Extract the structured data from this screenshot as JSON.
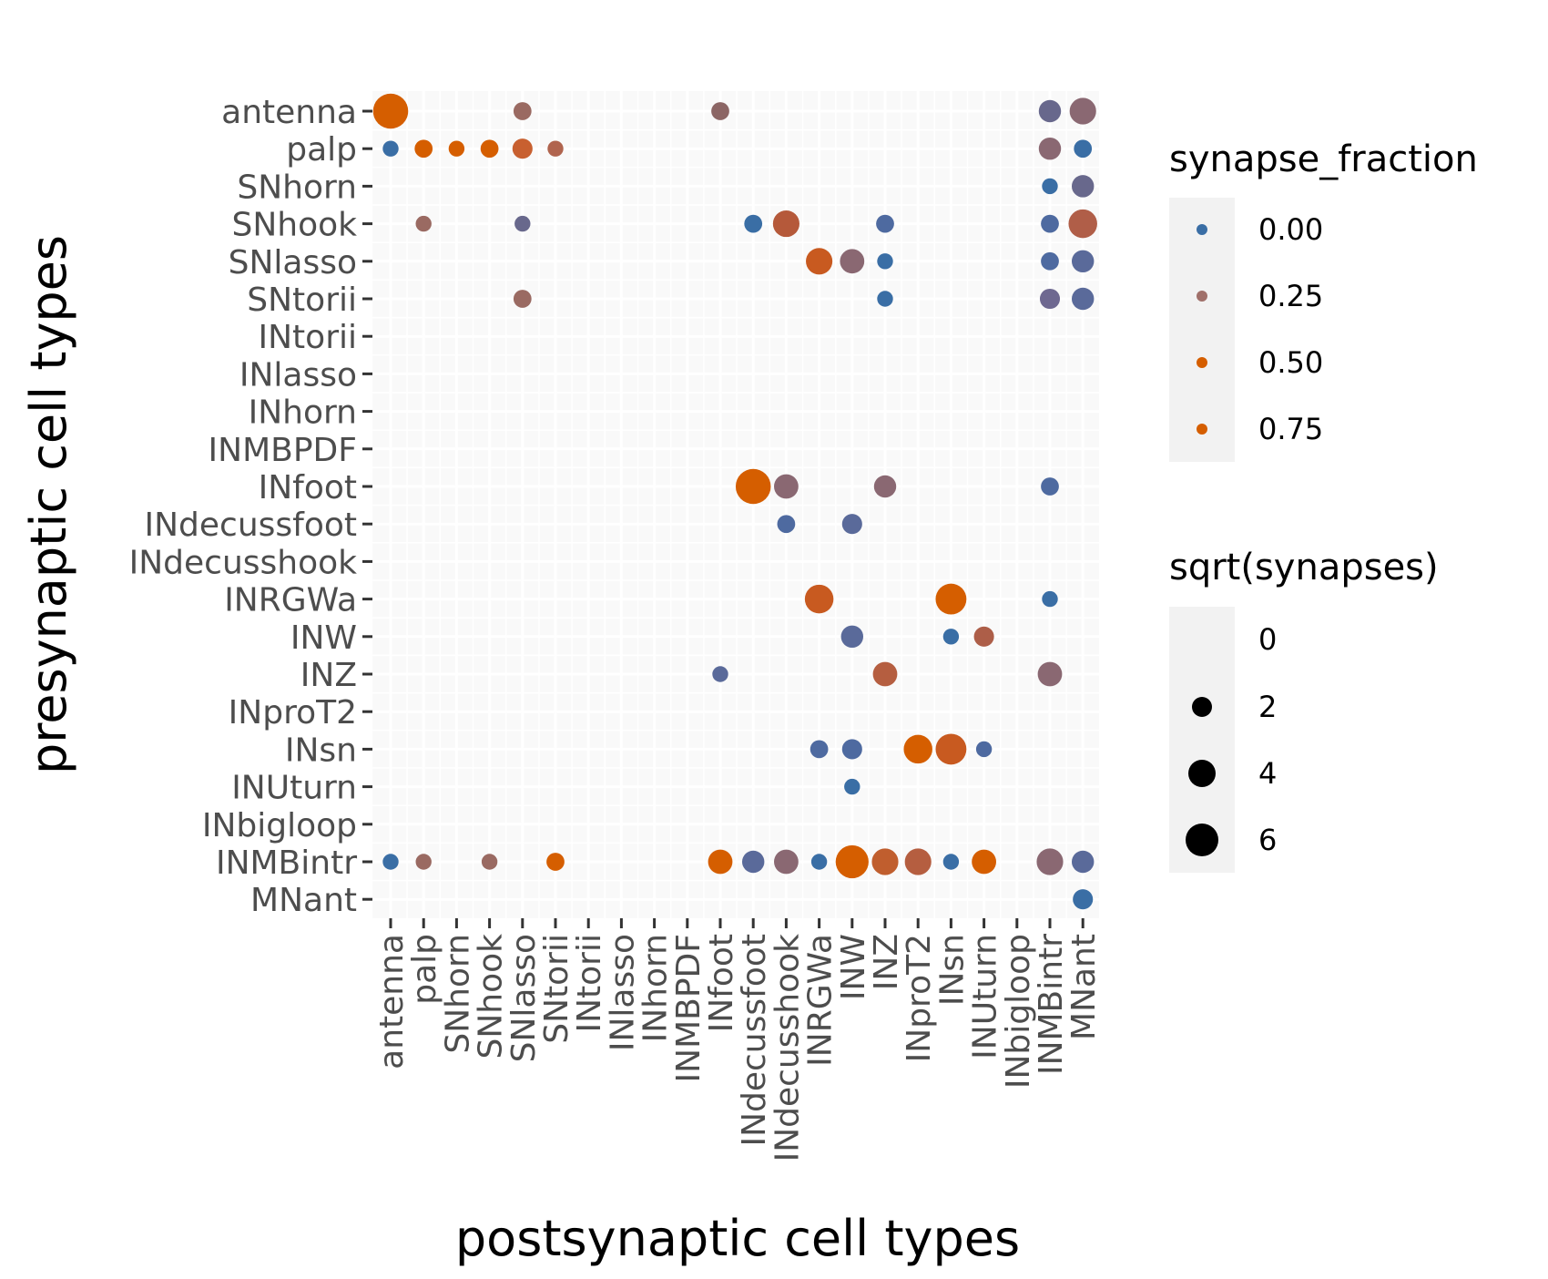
{
  "chart_data": {
    "type": "scatter",
    "title": "",
    "xlabel": "postsynaptic cell types",
    "ylabel": "presynaptic cell types",
    "categories": [
      "antenna",
      "palp",
      "SNhorn",
      "SNhook",
      "SNlasso",
      "SNtorii",
      "INtorii",
      "INlasso",
      "INhorn",
      "INMBPDF",
      "INfoot",
      "INdecussfoot",
      "INdecusshook",
      "INRGWa",
      "INW",
      "INZ",
      "INproT2",
      "INsn",
      "INUturn",
      "INbigloop",
      "INMBintr",
      "MNant"
    ],
    "grid": true,
    "legend_position": "right",
    "legends": [
      {
        "title": "synapse_fraction",
        "entries": [
          {
            "label": "0.00",
            "value": 0.0,
            "color": "#3a6ea5"
          },
          {
            "label": "0.25",
            "value": 0.25,
            "color": "#a0706a"
          },
          {
            "label": "0.50",
            "value": 0.5,
            "color": "#d55e00"
          },
          {
            "label": "0.75",
            "value": 0.75,
            "color": "#d55e00"
          }
        ]
      },
      {
        "title": "sqrt(synapses)",
        "entries": [
          {
            "label": "0",
            "value": 0
          },
          {
            "label": "2",
            "value": 2
          },
          {
            "label": "4",
            "value": 4
          },
          {
            "label": "6",
            "value": 6
          }
        ]
      }
    ],
    "points": [
      {
        "pre": "antenna",
        "post": "antenna",
        "size": 6.5,
        "color": "#d55e00"
      },
      {
        "pre": "antenna",
        "post": "SNlasso",
        "size": 2.5,
        "color": "#9a6a62"
      },
      {
        "pre": "antenna",
        "post": "INfoot",
        "size": 2.5,
        "color": "#8c6665"
      },
      {
        "pre": "antenna",
        "post": "INMBintr",
        "size": 3.5,
        "color": "#68688c"
      },
      {
        "pre": "antenna",
        "post": "MNant",
        "size": 4.5,
        "color": "#8a6872"
      },
      {
        "pre": "palp",
        "post": "antenna",
        "size": 2.0,
        "color": "#3a6ea5"
      },
      {
        "pre": "palp",
        "post": "palp",
        "size": 2.5,
        "color": "#d55e00"
      },
      {
        "pre": "palp",
        "post": "SNhorn",
        "size": 2.0,
        "color": "#d55e00"
      },
      {
        "pre": "palp",
        "post": "SNhook",
        "size": 2.5,
        "color": "#d55e00"
      },
      {
        "pre": "palp",
        "post": "SNlasso",
        "size": 3.0,
        "color": "#c86030"
      },
      {
        "pre": "palp",
        "post": "SNtorii",
        "size": 2.0,
        "color": "#b0644e"
      },
      {
        "pre": "palp",
        "post": "INMBintr",
        "size": 3.5,
        "color": "#8a6872"
      },
      {
        "pre": "palp",
        "post": "MNant",
        "size": 2.5,
        "color": "#3a6ea5"
      },
      {
        "pre": "SNhorn",
        "post": "INMBintr",
        "size": 2.0,
        "color": "#3a6ea5"
      },
      {
        "pre": "SNhorn",
        "post": "MNant",
        "size": 3.5,
        "color": "#68688c"
      },
      {
        "pre": "SNhook",
        "post": "palp",
        "size": 2.0,
        "color": "#9a6a62"
      },
      {
        "pre": "SNhook",
        "post": "SNlasso",
        "size": 2.0,
        "color": "#68688c"
      },
      {
        "pre": "SNhook",
        "post": "INdecussfoot",
        "size": 2.5,
        "color": "#3a6ea5"
      },
      {
        "pre": "SNhook",
        "post": "INdecusshook",
        "size": 4.5,
        "color": "#b5593a"
      },
      {
        "pre": "SNhook",
        "post": "INZ",
        "size": 2.5,
        "color": "#4e6aa0"
      },
      {
        "pre": "SNhook",
        "post": "INMBintr",
        "size": 2.5,
        "color": "#4e6aa0"
      },
      {
        "pre": "SNhook",
        "post": "MNant",
        "size": 5.0,
        "color": "#b05e48"
      },
      {
        "pre": "SNlasso",
        "post": "INRGWa",
        "size": 4.5,
        "color": "#c85a20"
      },
      {
        "pre": "SNlasso",
        "post": "INW",
        "size": 4.0,
        "color": "#8a6872"
      },
      {
        "pre": "SNlasso",
        "post": "INZ",
        "size": 2.0,
        "color": "#3a6ea5"
      },
      {
        "pre": "SNlasso",
        "post": "INMBintr",
        "size": 2.5,
        "color": "#4e6aa0"
      },
      {
        "pre": "SNlasso",
        "post": "MNant",
        "size": 3.5,
        "color": "#5a6a9a"
      },
      {
        "pre": "SNtorii",
        "post": "SNlasso",
        "size": 2.5,
        "color": "#9a6a62"
      },
      {
        "pre": "SNtorii",
        "post": "INZ",
        "size": 2.0,
        "color": "#3a6ea5"
      },
      {
        "pre": "SNtorii",
        "post": "INMBintr",
        "size": 3.0,
        "color": "#6e6890"
      },
      {
        "pre": "SNtorii",
        "post": "MNant",
        "size": 3.5,
        "color": "#5a6a9a"
      },
      {
        "pre": "INfoot",
        "post": "INdecussfoot",
        "size": 6.5,
        "color": "#d55e00"
      },
      {
        "pre": "INfoot",
        "post": "INdecusshook",
        "size": 4.0,
        "color": "#8a6872"
      },
      {
        "pre": "INfoot",
        "post": "INZ",
        "size": 3.5,
        "color": "#8a6872"
      },
      {
        "pre": "INfoot",
        "post": "INMBintr",
        "size": 2.5,
        "color": "#4e6aa0"
      },
      {
        "pre": "INdecussfoot",
        "post": "INdecusshook",
        "size": 2.5,
        "color": "#4e6aa0"
      },
      {
        "pre": "INdecussfoot",
        "post": "INW",
        "size": 3.0,
        "color": "#5a6a9a"
      },
      {
        "pre": "INRGWa",
        "post": "INRGWa",
        "size": 5.0,
        "color": "#c85a20"
      },
      {
        "pre": "INRGWa",
        "post": "INsn",
        "size": 5.5,
        "color": "#d55e00"
      },
      {
        "pre": "INRGWa",
        "post": "INMBintr",
        "size": 2.0,
        "color": "#3a6ea5"
      },
      {
        "pre": "INW",
        "post": "INW",
        "size": 3.5,
        "color": "#5a6a9a"
      },
      {
        "pre": "INW",
        "post": "INsn",
        "size": 2.0,
        "color": "#3a6ea5"
      },
      {
        "pre": "INW",
        "post": "INUturn",
        "size": 3.0,
        "color": "#ad5e48"
      },
      {
        "pre": "INZ",
        "post": "INfoot",
        "size": 2.0,
        "color": "#5a6a9a"
      },
      {
        "pre": "INZ",
        "post": "INZ",
        "size": 4.0,
        "color": "#b55e40"
      },
      {
        "pre": "INZ",
        "post": "INMBintr",
        "size": 4.0,
        "color": "#8a6872"
      },
      {
        "pre": "INsn",
        "post": "INRGWa",
        "size": 2.5,
        "color": "#4e6aa0"
      },
      {
        "pre": "INsn",
        "post": "INW",
        "size": 3.0,
        "color": "#4e6aa0"
      },
      {
        "pre": "INsn",
        "post": "INproT2",
        "size": 5.0,
        "color": "#d55e00"
      },
      {
        "pre": "INsn",
        "post": "INsn",
        "size": 5.5,
        "color": "#c85a20"
      },
      {
        "pre": "INsn",
        "post": "INUturn",
        "size": 2.0,
        "color": "#4e6aa0"
      },
      {
        "pre": "INUturn",
        "post": "INW",
        "size": 2.0,
        "color": "#3a6ea5"
      },
      {
        "pre": "INMBintr",
        "post": "antenna",
        "size": 2.0,
        "color": "#3a6ea5"
      },
      {
        "pre": "INMBintr",
        "post": "palp",
        "size": 2.0,
        "color": "#9a6a62"
      },
      {
        "pre": "INMBintr",
        "post": "SNhook",
        "size": 2.0,
        "color": "#9a6a62"
      },
      {
        "pre": "INMBintr",
        "post": "SNtorii",
        "size": 2.5,
        "color": "#d55e00"
      },
      {
        "pre": "INMBintr",
        "post": "INfoot",
        "size": 4.0,
        "color": "#d55e00"
      },
      {
        "pre": "INMBintr",
        "post": "INdecussfoot",
        "size": 3.5,
        "color": "#5a6a9a"
      },
      {
        "pre": "INMBintr",
        "post": "INdecusshook",
        "size": 4.0,
        "color": "#8a6872"
      },
      {
        "pre": "INMBintr",
        "post": "INRGWa",
        "size": 2.0,
        "color": "#3a6ea5"
      },
      {
        "pre": "INMBintr",
        "post": "INW",
        "size": 6.0,
        "color": "#d55e00"
      },
      {
        "pre": "INMBintr",
        "post": "INZ",
        "size": 4.5,
        "color": "#c05e2e"
      },
      {
        "pre": "INMBintr",
        "post": "INproT2",
        "size": 4.5,
        "color": "#b55e40"
      },
      {
        "pre": "INMBintr",
        "post": "INsn",
        "size": 2.0,
        "color": "#3a6ea5"
      },
      {
        "pre": "INMBintr",
        "post": "INUturn",
        "size": 4.0,
        "color": "#d55e00"
      },
      {
        "pre": "INMBintr",
        "post": "INMBintr",
        "size": 4.5,
        "color": "#8a6872"
      },
      {
        "pre": "INMBintr",
        "post": "MNant",
        "size": 3.5,
        "color": "#5a6a9a"
      },
      {
        "pre": "MNant",
        "post": "MNant",
        "size": 3.0,
        "color": "#3a6ea5"
      }
    ]
  }
}
